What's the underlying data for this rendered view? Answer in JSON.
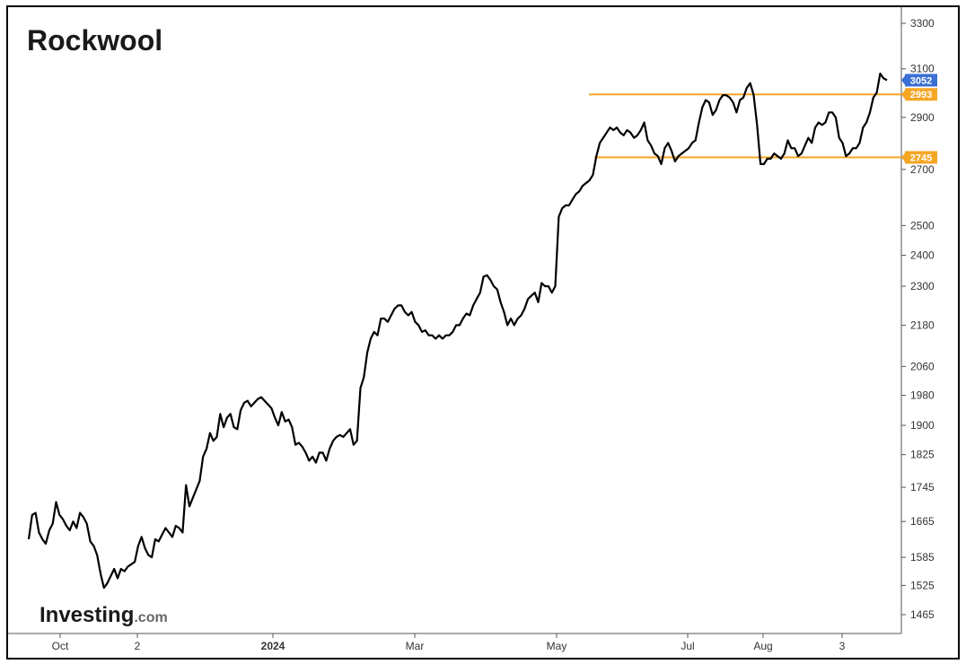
{
  "chart_data": {
    "type": "line",
    "title": "Rockwool",
    "watermark": {
      "main": "Investing",
      "sub": ".com"
    },
    "y_scale": "log",
    "ylim": [
      1400,
      3350
    ],
    "y_ticks": [
      "3300",
      "3100",
      "2900",
      "2700",
      "2500",
      "2400",
      "2300",
      "2180",
      "2060",
      "1980",
      "1900",
      "1825",
      "1745",
      "1665",
      "1585",
      "1525",
      "1465"
    ],
    "x_ticks": [
      "Oct",
      "2",
      "2024",
      "Mar",
      "May",
      "Jul",
      "Aug",
      "3"
    ],
    "grid": false,
    "colors": {
      "line": "#000000",
      "level": "#f5a623",
      "current_badge": "#3b6fd4",
      "axis": "#333333",
      "frame": "#000000"
    },
    "levels": [
      {
        "label": "2993",
        "value": 2993
      },
      {
        "label": "2745",
        "value": 2745
      }
    ],
    "current_price": {
      "label": "3052",
      "value": 3052
    },
    "series": [
      {
        "values": [
          1625,
          1680,
          1685,
          1640,
          1625,
          1615,
          1645,
          1660,
          1710,
          1680,
          1670,
          1655,
          1645,
          1665,
          1650,
          1685,
          1675,
          1660,
          1620,
          1610,
          1590,
          1550,
          1520,
          1530,
          1545,
          1560,
          1540,
          1560,
          1555,
          1565,
          1570,
          1575,
          1610,
          1630,
          1605,
          1590,
          1585,
          1625,
          1620,
          1635,
          1650,
          1640,
          1630,
          1655,
          1650,
          1640,
          1750,
          1700,
          1720,
          1740,
          1760,
          1820,
          1840,
          1880,
          1860,
          1870,
          1930,
          1895,
          1920,
          1930,
          1895,
          1890,
          1940,
          1960,
          1965,
          1950,
          1960,
          1970,
          1975,
          1965,
          1955,
          1945,
          1920,
          1900,
          1935,
          1910,
          1915,
          1895,
          1850,
          1855,
          1845,
          1830,
          1810,
          1820,
          1805,
          1830,
          1830,
          1810,
          1840,
          1860,
          1870,
          1875,
          1870,
          1880,
          1890,
          1850,
          1860,
          2000,
          2030,
          2100,
          2140,
          2160,
          2150,
          2200,
          2200,
          2190,
          2210,
          2230,
          2240,
          2240,
          2220,
          2210,
          2220,
          2190,
          2180,
          2160,
          2165,
          2150,
          2150,
          2140,
          2150,
          2140,
          2150,
          2150,
          2160,
          2180,
          2180,
          2200,
          2215,
          2210,
          2240,
          2260,
          2280,
          2330,
          2335,
          2320,
          2300,
          2290,
          2250,
          2220,
          2180,
          2200,
          2180,
          2200,
          2210,
          2230,
          2260,
          2270,
          2280,
          2250,
          2310,
          2300,
          2300,
          2280,
          2300,
          2530,
          2560,
          2570,
          2570,
          2590,
          2610,
          2620,
          2640,
          2650,
          2660,
          2680,
          2750,
          2800,
          2820,
          2840,
          2860,
          2850,
          2860,
          2840,
          2830,
          2850,
          2840,
          2820,
          2830,
          2850,
          2880,
          2810,
          2790,
          2760,
          2750,
          2720,
          2780,
          2800,
          2770,
          2730,
          2750,
          2760,
          2770,
          2780,
          2800,
          2810,
          2880,
          2940,
          2970,
          2960,
          2910,
          2930,
          2970,
          2990,
          2990,
          2980,
          2960,
          2920,
          2970,
          2980,
          3020,
          3040,
          2990,
          2870,
          2720,
          2720,
          2740,
          2740,
          2760,
          2750,
          2740,
          2760,
          2810,
          2780,
          2780,
          2750,
          2760,
          2790,
          2820,
          2800,
          2860,
          2880,
          2870,
          2880,
          2920,
          2920,
          2900,
          2820,
          2800,
          2750,
          2760,
          2780,
          2780,
          2800,
          2860,
          2880,
          2920,
          2980,
          3000,
          3080,
          3060,
          3052
        ]
      }
    ]
  }
}
